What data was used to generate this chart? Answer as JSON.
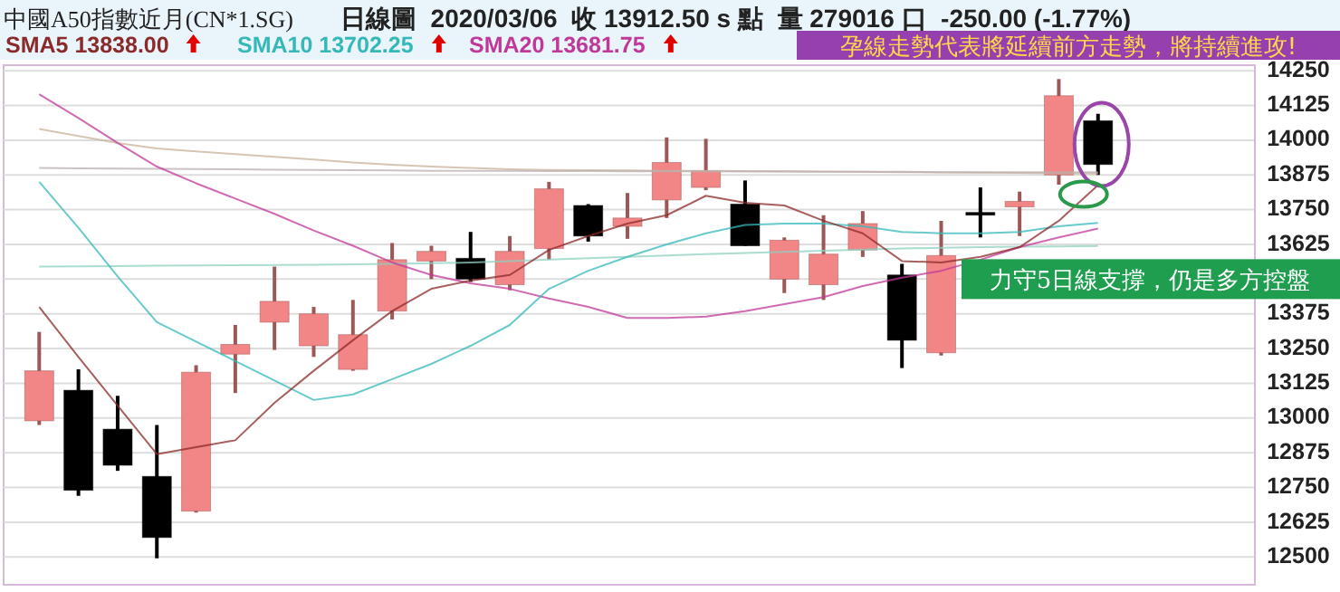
{
  "chart_data": {
    "type": "candlestick",
    "title": "中國A50指數近月(CN*1.SG)",
    "subtitle": "日線圖  2020/03/06  收 13912.50 s 點  量 279016 口  -250.00 (-1.77%)",
    "categories": [
      null,
      null,
      null,
      null,
      null,
      null,
      null,
      null,
      null,
      null,
      null,
      null,
      null,
      null,
      null,
      null,
      null,
      null,
      null,
      null,
      null,
      null,
      null,
      null,
      null,
      null,
      null,
      null
    ],
    "ohlc": [
      [
        12990,
        13310,
        12975,
        13170
      ],
      [
        13100,
        13175,
        12720,
        12740
      ],
      [
        12960,
        13080,
        12810,
        12830
      ],
      [
        12790,
        12975,
        12495,
        12570
      ],
      [
        12665,
        13190,
        12660,
        13165
      ],
      [
        13230,
        13335,
        13090,
        13265
      ],
      [
        13345,
        13545,
        13245,
        13420
      ],
      [
        13260,
        13400,
        13220,
        13375
      ],
      [
        13175,
        13425,
        13170,
        13300
      ],
      [
        13385,
        13630,
        13355,
        13570
      ],
      [
        13565,
        13620,
        13500,
        13600
      ],
      [
        13575,
        13670,
        13490,
        13500
      ],
      [
        13480,
        13655,
        13460,
        13600
      ],
      [
        13610,
        13850,
        13570,
        13825
      ],
      [
        13765,
        13770,
        13635,
        13655
      ],
      [
        13690,
        13810,
        13645,
        13720
      ],
      [
        13785,
        14010,
        13720,
        13920
      ],
      [
        13830,
        14005,
        13820,
        13890
      ],
      [
        13770,
        13855,
        13620,
        13620
      ],
      [
        13500,
        13650,
        13450,
        13640
      ],
      [
        13480,
        13730,
        13425,
        13590
      ],
      [
        13605,
        13745,
        13580,
        13700
      ],
      [
        13515,
        13555,
        13180,
        13280
      ],
      [
        13235,
        13710,
        13225,
        13585
      ],
      [
        13740,
        13830,
        13650,
        13735
      ],
      [
        13760,
        13815,
        13655,
        13780
      ],
      [
        13875,
        14220,
        13840,
        14160
      ],
      [
        14070,
        14095,
        13875,
        13912.5
      ]
    ],
    "colors": [
      "#f28585",
      "#000000",
      "#000000",
      "#000000",
      "#f28585",
      "#f28585",
      "#f28585",
      "#f28585",
      "#f28585",
      "#f28585",
      "#f28585",
      "#000000",
      "#f28585",
      "#f28585",
      "#000000",
      "#f28585",
      "#f28585",
      "#f28585",
      "#000000",
      "#f28585",
      "#f28585",
      "#f28585",
      "#000000",
      "#f28585",
      "#000000",
      "#f28585",
      "#f28585",
      "#000000"
    ],
    "series": [
      {
        "type": "line",
        "color": "#c9b29b",
        "values": [
          14040,
          14015,
          13990,
          13970,
          13960,
          13950,
          13940,
          13930,
          13920,
          13912,
          13905,
          13900,
          13895,
          13893,
          13892,
          13891,
          13890,
          13890,
          13889,
          13888,
          13887,
          13886,
          13885,
          13884,
          13883,
          13882,
          13881,
          13880
        ]
      },
      {
        "type": "line",
        "color": "#b9aeb0",
        "values": [
          13900,
          13899,
          13898,
          13897,
          13896,
          13895,
          13894,
          13893,
          13892,
          13891,
          13890,
          13890,
          13890,
          13889,
          13889,
          13888,
          13888,
          13888,
          13887,
          13887,
          13886,
          13886,
          13886,
          13885,
          13885,
          13885,
          13885,
          13885
        ]
      },
      {
        "type": "line",
        "color": "#8fd0c0",
        "values": [
          13545,
          13546,
          13547,
          13548,
          13549,
          13550,
          13551,
          13552,
          13553,
          13555,
          13557,
          13560,
          13565,
          13570,
          13575,
          13580,
          13585,
          13590,
          13594,
          13598,
          13602,
          13606,
          13610,
          13613,
          13615,
          13617,
          13618,
          13619
        ]
      },
      {
        "type": "line",
        "name": "SMA20 13681.75",
        "color": "#c0399a",
        "values": [
          14165,
          14080,
          13990,
          13905,
          13845,
          13790,
          13735,
          13675,
          13620,
          13560,
          13515,
          13485,
          13465,
          13430,
          13400,
          13360,
          13360,
          13365,
          13385,
          13410,
          13435,
          13475,
          13505,
          13530,
          13570,
          13615,
          13650,
          13681.75
        ]
      },
      {
        "type": "line",
        "name": "SMA10 13702.25",
        "color": "#35b8b8",
        "values": [
          13850,
          13685,
          13510,
          13345,
          13275,
          13205,
          13135,
          13065,
          13085,
          13140,
          13195,
          13260,
          13335,
          13465,
          13530,
          13580,
          13625,
          13665,
          13695,
          13700,
          13700,
          13690,
          13670,
          13665,
          13665,
          13670,
          13690,
          13702.25
        ]
      },
      {
        "type": "line",
        "name": "SMA5 13838.00",
        "color": "#8b2a2a",
        "values": [
          13400,
          13220,
          13045,
          12870,
          12895,
          12920,
          13055,
          13170,
          13280,
          13385,
          13465,
          13495,
          13515,
          13605,
          13655,
          13700,
          13730,
          13800,
          13775,
          13765,
          13710,
          13665,
          13565,
          13560,
          13580,
          13615,
          13710,
          13838
        ]
      }
    ],
    "ylim": [
      12400,
      14270
    ],
    "yticks": [
      12500,
      12625,
      12750,
      12875,
      13000,
      13125,
      13250,
      13375,
      {
        "value": 13500,
        "label": null
      },
      13625,
      13750,
      13875,
      14000,
      14125,
      14250
    ],
    "grid": "y",
    "annotations": [
      "孕線走勢代表將延續前方走勢，將持續進攻!",
      "力守5日線支撐，仍是多方控盤"
    ]
  }
}
